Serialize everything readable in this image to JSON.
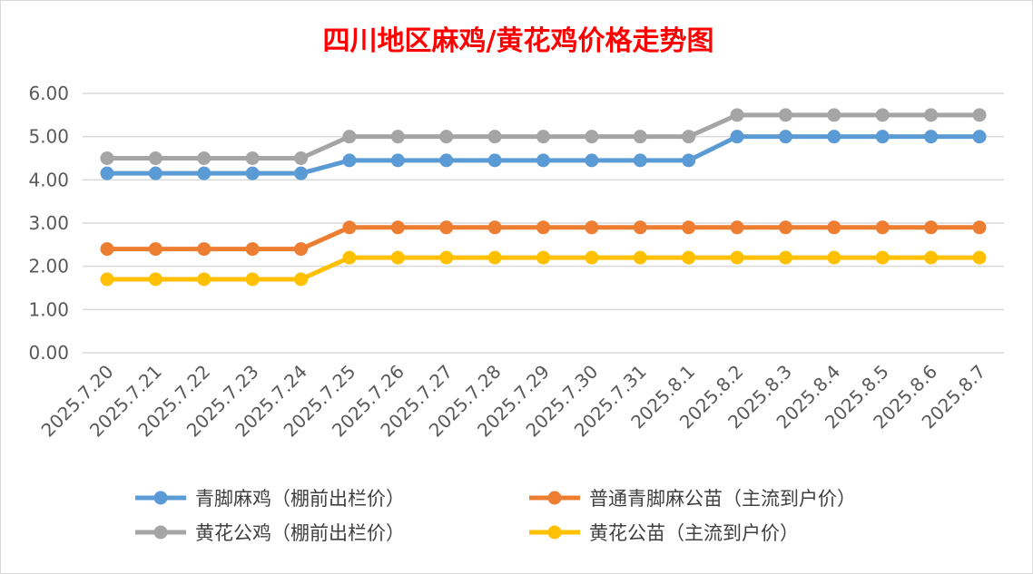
{
  "chart_data": {
    "type": "line",
    "title": "四川地区麻鸡/黄花鸡价格走势图",
    "xlabel": "",
    "ylabel": "",
    "ylim": [
      0,
      6
    ],
    "yticks": [
      "0.00",
      "1.00",
      "2.00",
      "3.00",
      "4.00",
      "5.00",
      "6.00"
    ],
    "grid": "horizontal",
    "legend_position": "bottom",
    "categories": [
      "2025.7.20",
      "2025.7.21",
      "2025.7.22",
      "2025.7.23",
      "2025.7.24",
      "2025.7.25",
      "2025.7.26",
      "2025.7.27",
      "2025.7.28",
      "2025.7.29",
      "2025.7.30",
      "2025.7.31",
      "2025.8.1",
      "2025.8.2",
      "2025.8.3",
      "2025.8.4",
      "2025.8.5",
      "2025.8.6",
      "2025.8.7"
    ],
    "series": [
      {
        "name": "青脚麻鸡（棚前出栏价）",
        "color": "#5b9bd5",
        "values": [
          4.15,
          4.15,
          4.15,
          4.15,
          4.15,
          4.45,
          4.45,
          4.45,
          4.45,
          4.45,
          4.45,
          4.45,
          4.45,
          5.0,
          5.0,
          5.0,
          5.0,
          5.0,
          5.0
        ]
      },
      {
        "name": "普通青脚麻公苗（主流到户价）",
        "color": "#ed7d31",
        "values": [
          2.4,
          2.4,
          2.4,
          2.4,
          2.4,
          2.9,
          2.9,
          2.9,
          2.9,
          2.9,
          2.9,
          2.9,
          2.9,
          2.9,
          2.9,
          2.9,
          2.9,
          2.9,
          2.9
        ]
      },
      {
        "name": "黄花公鸡（棚前出栏价）",
        "color": "#a5a5a5",
        "values": [
          4.5,
          4.5,
          4.5,
          4.5,
          4.5,
          5.0,
          5.0,
          5.0,
          5.0,
          5.0,
          5.0,
          5.0,
          5.0,
          5.5,
          5.5,
          5.5,
          5.5,
          5.5,
          5.5
        ]
      },
      {
        "name": "黄花公苗（主流到户价）",
        "color": "#ffc000",
        "values": [
          1.7,
          1.7,
          1.7,
          1.7,
          1.7,
          2.2,
          2.2,
          2.2,
          2.2,
          2.2,
          2.2,
          2.2,
          2.2,
          2.2,
          2.2,
          2.2,
          2.2,
          2.2,
          2.2
        ]
      }
    ]
  }
}
